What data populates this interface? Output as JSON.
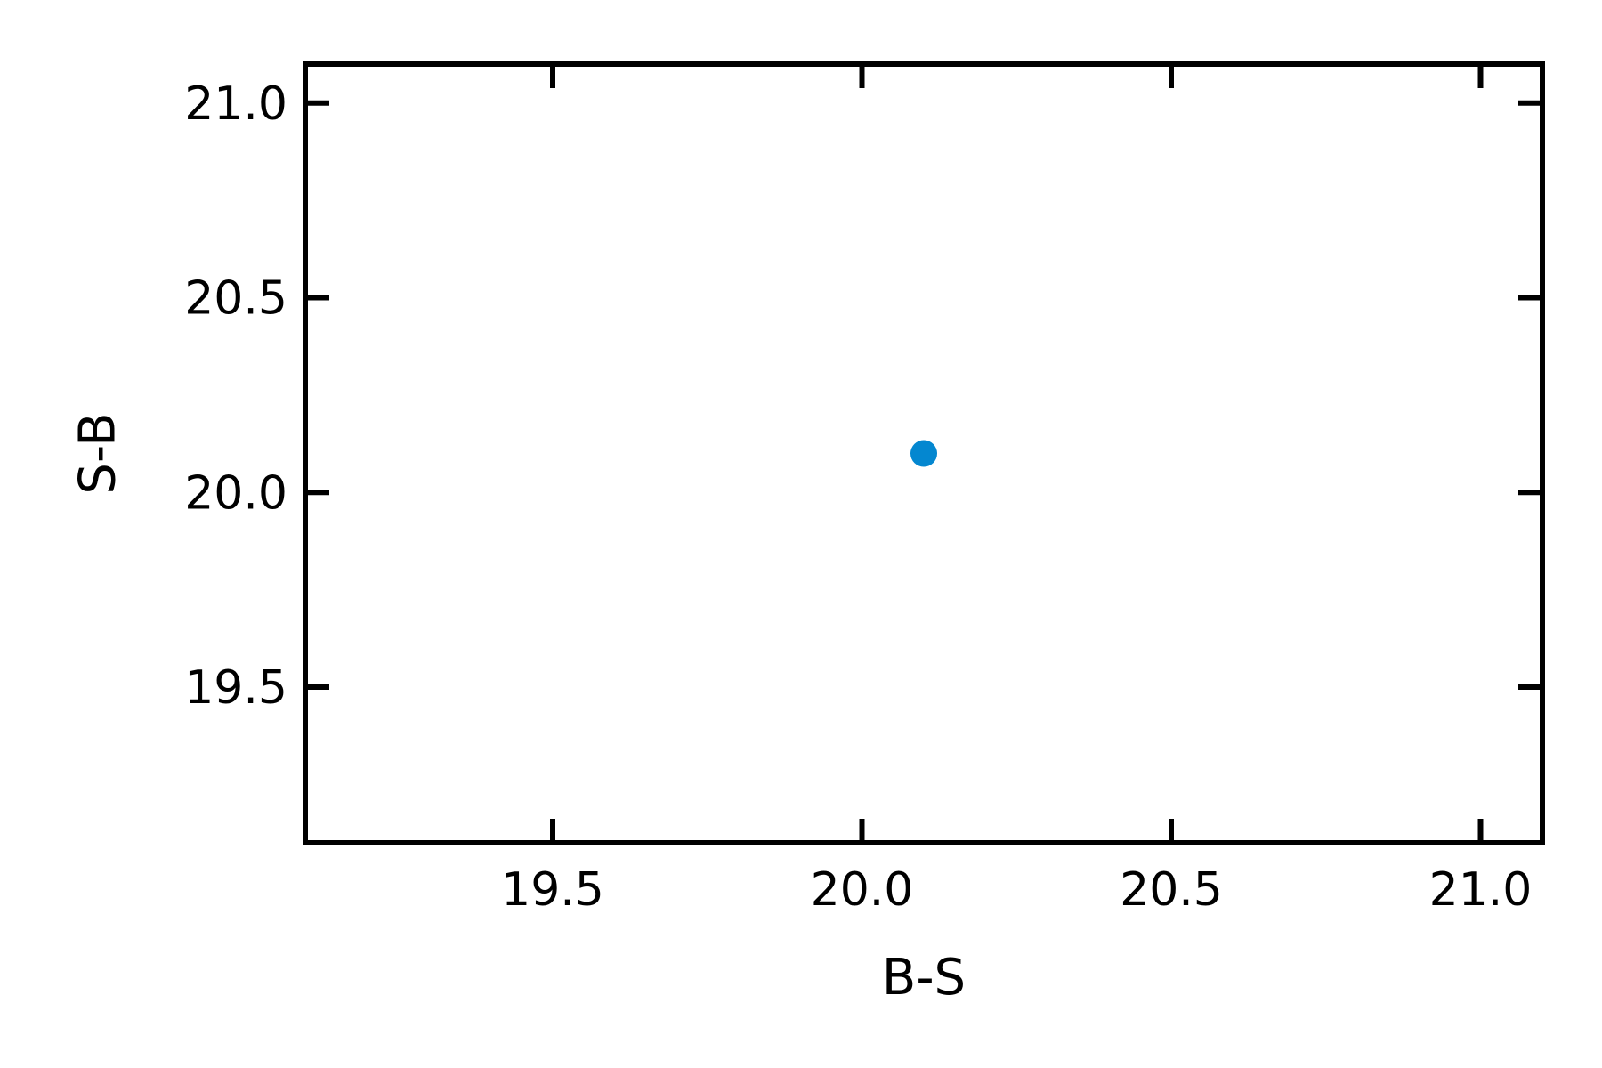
{
  "chart_data": {
    "type": "scatter",
    "xlabel": "B-S",
    "ylabel": "S-B",
    "xlim": [
      19.1,
      21.1
    ],
    "ylim": [
      19.1,
      21.1
    ],
    "x_ticks": [
      "19.5",
      "20.0",
      "20.5",
      "21.0"
    ],
    "y_ticks": [
      "19.5",
      "20.0",
      "20.5",
      "21.0"
    ],
    "grid": false,
    "legend": "none",
    "points": [
      {
        "x": 20.1,
        "y": 20.1
      }
    ],
    "point_color": "#0487d0",
    "axis_color": "#000000"
  }
}
